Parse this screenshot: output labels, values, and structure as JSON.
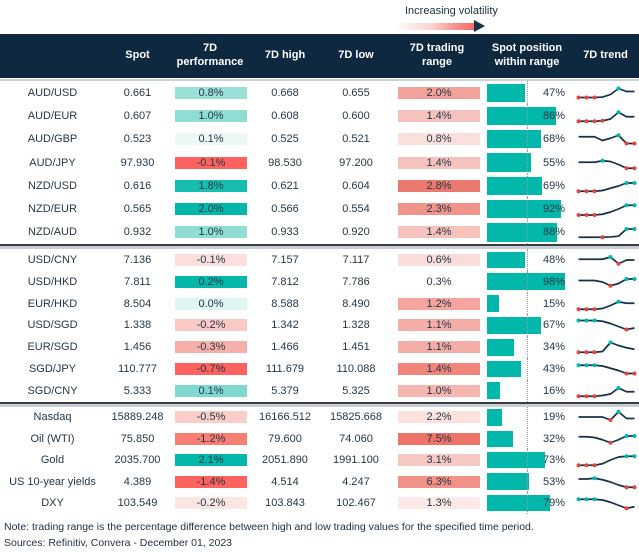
{
  "chart_data": {
    "type": "table",
    "annotation": "Increasing volatility",
    "columns": [
      "Spot",
      "7D performance",
      "7D high",
      "7D low",
      "7D trading range",
      "Spot position within range",
      "7D trend"
    ],
    "colors": {
      "header_navy": "#0E2840",
      "teal": "#01B8AA",
      "red": "#FD625E",
      "spark_line": "#14304A",
      "marker_red": "#E8443C",
      "marker_teal": "#01B8AA",
      "bar_fill": "#01B8AA"
    },
    "groups": [
      {
        "rows": [
          {
            "label": "AUD/USD",
            "spot": "0.661",
            "perf": "0.8%",
            "perf_bg": "#9BE0D7",
            "high": "0.668",
            "low": "0.655",
            "range": "2.0%",
            "range_bg": "#F2A29B",
            "pos": 47,
            "spark": {
              "y": [
                2,
                2,
                2,
                2.3,
                4,
                8,
                6,
                6
              ],
              "m": [
                [
                  0,
                  "r"
                ],
                [
                  1,
                  "r"
                ],
                [
                  2,
                  "r"
                ],
                [
                  5,
                  "t"
                ]
              ]
            }
          },
          {
            "label": "AUD/EUR",
            "spot": "0.607",
            "perf": "1.0%",
            "perf_bg": "#8FDED4",
            "high": "0.608",
            "low": "0.600",
            "range": "1.4%",
            "range_bg": "#F6C2BD",
            "pos": 86,
            "spark": {
              "y": [
                1.5,
                1.5,
                1.5,
                1.8,
                3,
                7.5,
                4.5,
                4.5
              ],
              "m": [
                [
                  0,
                  "r"
                ],
                [
                  1,
                  "r"
                ],
                [
                  2,
                  "r"
                ],
                [
                  3,
                  "r"
                ],
                [
                  5,
                  "t"
                ]
              ]
            }
          },
          {
            "label": "AUD/GBP",
            "spot": "0.523",
            "perf": "0.1%",
            "perf_bg": "#EBF9F6",
            "high": "0.525",
            "low": "0.521",
            "range": "0.8%",
            "range_bg": "#FBDFDC",
            "pos": 68,
            "spark": {
              "y": [
                6.5,
                6.5,
                6.5,
                4,
                5.5,
                7.5,
                2,
                2
              ],
              "m": [
                [
                  5,
                  "t"
                ],
                [
                  6,
                  "r"
                ],
                [
                  7,
                  "r"
                ]
              ]
            }
          },
          {
            "label": "AUD/JPY",
            "spot": "97.930",
            "perf": "-0.1%",
            "perf_bg": "#FD625E",
            "high": "98.530",
            "low": "97.200",
            "range": "1.4%",
            "range_bg": "#F6C2BD",
            "pos": 55,
            "spark": {
              "y": [
                5.5,
                5.5,
                5.5,
                6.5,
                6,
                4,
                1.5,
                1.5
              ],
              "m": [
                [
                  3,
                  "t"
                ],
                [
                  6,
                  "r"
                ],
                [
                  7,
                  "r"
                ]
              ]
            }
          },
          {
            "label": "NZD/USD",
            "spot": "0.616",
            "perf": "1.8%",
            "perf_bg": "#17BDAF",
            "high": "0.621",
            "low": "0.604",
            "range": "2.8%",
            "range_bg": "#EB7A6E",
            "pos": 69,
            "spark": {
              "y": [
                1.5,
                1.5,
                1.5,
                2,
                3.5,
                5,
                7,
                7
              ],
              "m": [
                [
                  0,
                  "r"
                ],
                [
                  1,
                  "r"
                ],
                [
                  2,
                  "r"
                ],
                [
                  6,
                  "t"
                ],
                [
                  7,
                  "t"
                ]
              ]
            }
          },
          {
            "label": "NZD/EUR",
            "spot": "0.565",
            "perf": "2.0%",
            "perf_bg": "#01B8AA",
            "high": "0.566",
            "low": "0.554",
            "range": "2.3%",
            "range_bg": "#EF948A",
            "pos": 92,
            "spark": {
              "y": [
                1,
                1,
                1,
                1.5,
                3,
                5,
                7.5,
                7.5
              ],
              "m": [
                [
                  0,
                  "r"
                ],
                [
                  1,
                  "r"
                ],
                [
                  2,
                  "r"
                ],
                [
                  6,
                  "t"
                ],
                [
                  7,
                  "t"
                ]
              ]
            }
          },
          {
            "label": "NZD/AUD",
            "spot": "0.932",
            "perf": "1.0%",
            "perf_bg": "#8FDED4",
            "high": "0.933",
            "low": "0.920",
            "range": "1.4%",
            "range_bg": "#F6C2BD",
            "pos": 88,
            "spark": {
              "y": [
                1.5,
                1.5,
                1.5,
                1.5,
                1.7,
                2.2,
                7,
                7
              ],
              "m": [
                [
                  3,
                  "r"
                ],
                [
                  6,
                  "t"
                ],
                [
                  7,
                  "t"
                ]
              ]
            }
          }
        ]
      },
      {
        "rows": [
          {
            "label": "USD/CNY",
            "spot": "7.136",
            "perf": "-0.1%",
            "perf_bg": "#FBE0DE",
            "high": "7.157",
            "low": "7.117",
            "range": "0.6%",
            "range_bg": "#FADDDA",
            "pos": 48,
            "spark": {
              "y": [
                5.5,
                5.5,
                5.5,
                5.5,
                7,
                2.5,
                5,
                5
              ],
              "m": [
                [
                  4,
                  "t"
                ],
                [
                  5,
                  "r"
                ]
              ]
            }
          },
          {
            "label": "USD/HKD",
            "spot": "7.811",
            "perf": "0.2%",
            "perf_bg": "#01B8AA",
            "high": "7.812",
            "low": "7.786",
            "range": "0.3%",
            "range_bg": "#FFFFFF",
            "pos": 98,
            "spark": {
              "y": [
                6,
                6,
                6,
                5,
                2.5,
                4,
                7,
                7
              ],
              "m": [
                [
                  4,
                  "r"
                ],
                [
                  6,
                  "t"
                ],
                [
                  7,
                  "t"
                ]
              ]
            }
          },
          {
            "label": "EUR/HKD",
            "spot": "8.504",
            "perf": "0.0%",
            "perf_bg": "#E0F6F2",
            "high": "8.588",
            "low": "8.490",
            "range": "1.2%",
            "range_bg": "#F3A59E",
            "pos": 15,
            "spark": {
              "y": [
                1.5,
                1.5,
                1.5,
                2,
                4,
                6.5,
                5.5,
                5.5
              ],
              "m": [
                [
                  0,
                  "r"
                ],
                [
                  1,
                  "r"
                ],
                [
                  2,
                  "r"
                ],
                [
                  5,
                  "t"
                ]
              ]
            }
          },
          {
            "label": "USD/SGD",
            "spot": "1.338",
            "perf": "-0.2%",
            "perf_bg": "#F9C9C5",
            "high": "1.342",
            "low": "1.328",
            "range": "1.1%",
            "range_bg": "#F4AEA7",
            "pos": 67,
            "spark": {
              "y": [
                8,
                8,
                8,
                7.5,
                6,
                4,
                2,
                3
              ],
              "m": [
                [
                  0,
                  "t"
                ],
                [
                  1,
                  "t"
                ],
                [
                  2,
                  "t"
                ],
                [
                  6,
                  "r"
                ]
              ]
            }
          },
          {
            "label": "EUR/SGD",
            "spot": "1.456",
            "perf": "-0.3%",
            "perf_bg": "#F7B0A9",
            "high": "1.466",
            "low": "1.451",
            "range": "1.1%",
            "range_bg": "#F4AEA7",
            "pos": 34,
            "spark": {
              "y": [
                1.5,
                1.5,
                1.5,
                2,
                8,
                6,
                4.5,
                3.5
              ],
              "m": [
                [
                  0,
                  "r"
                ],
                [
                  1,
                  "r"
                ],
                [
                  2,
                  "r"
                ],
                [
                  4,
                  "t"
                ]
              ]
            }
          },
          {
            "label": "SGD/JPY",
            "spot": "110.777",
            "perf": "-0.7%",
            "perf_bg": "#FD625E",
            "high": "111.679",
            "low": "110.088",
            "range": "1.4%",
            "range_bg": "#F0867B",
            "pos": 43,
            "spark": {
              "y": [
                7.5,
                7.5,
                7.5,
                7,
                5.5,
                4,
                2,
                2
              ],
              "m": [
                [
                  0,
                  "t"
                ],
                [
                  1,
                  "t"
                ],
                [
                  2,
                  "t"
                ],
                [
                  6,
                  "r"
                ],
                [
                  7,
                  "r"
                ]
              ]
            }
          },
          {
            "label": "SGD/CNY",
            "spot": "5.333",
            "perf": "0.1%",
            "perf_bg": "#7FD9CE",
            "high": "5.379",
            "low": "5.325",
            "range": "1.0%",
            "range_bg": "#F5B6AF",
            "pos": 16,
            "spark": {
              "y": [
                1.5,
                1.5,
                1.5,
                2,
                3,
                7,
                4.5,
                4.5
              ],
              "m": [
                [
                  0,
                  "r"
                ],
                [
                  1,
                  "r"
                ],
                [
                  2,
                  "r"
                ],
                [
                  5,
                  "t"
                ]
              ]
            }
          }
        ]
      },
      {
        "rows": [
          {
            "label": "Nasdaq",
            "spot": "15889.248",
            "perf": "-0.5%",
            "perf_bg": "#FACDC9",
            "high": "16166.512",
            "low": "15825.668",
            "range": "2.2%",
            "range_bg": "#FBE2DF",
            "pos": 19,
            "spark": {
              "y": [
                5,
                5,
                5,
                5,
                3,
                8.5,
                4,
                4
              ],
              "m": [
                [
                  4,
                  "r"
                ],
                [
                  5,
                  "t"
                ]
              ]
            }
          },
          {
            "label": "Oil (WTI)",
            "spot": "75.850",
            "perf": "-1.2%",
            "perf_bg": "#F87E74",
            "high": "79.600",
            "low": "74.060",
            "range": "7.5%",
            "range_bg": "#ED7267",
            "pos": 32,
            "spark": {
              "y": [
                6.5,
                6.5,
                6,
                4.5,
                2.5,
                4.5,
                7,
                7
              ],
              "m": [
                [
                  4,
                  "r"
                ],
                [
                  6,
                  "t"
                ],
                [
                  7,
                  "t"
                ]
              ]
            }
          },
          {
            "label": "Gold",
            "spot": "2035.700",
            "perf": "2.1%",
            "perf_bg": "#01B8AA",
            "high": "2051.890",
            "low": "1991.100",
            "range": "3.1%",
            "range_bg": "#F8C8C3",
            "pos": 73,
            "spark": {
              "y": [
                1.5,
                1.5,
                1.5,
                2.5,
                5,
                7,
                7.5,
                7.5
              ],
              "m": [
                [
                  0,
                  "r"
                ],
                [
                  1,
                  "r"
                ],
                [
                  2,
                  "r"
                ],
                [
                  6,
                  "t"
                ],
                [
                  7,
                  "t"
                ]
              ]
            }
          },
          {
            "label": "US 10-year yields",
            "spot": "4.389",
            "perf": "-1.4%",
            "perf_bg": "#FD625E",
            "high": "4.514",
            "low": "4.247",
            "range": "6.3%",
            "range_bg": "#F19187",
            "pos": 53,
            "spark": {
              "y": [
                7,
                7,
                7.5,
                6.5,
                5,
                3,
                1.5,
                1.5
              ],
              "m": [
                [
                  2,
                  "t"
                ],
                [
                  6,
                  "r"
                ],
                [
                  7,
                  "r"
                ]
              ]
            }
          },
          {
            "label": "DXY",
            "spot": "103.549",
            "perf": "-0.2%",
            "perf_bg": "#FCE6E4",
            "high": "103.843",
            "low": "102.467",
            "range": "1.3%",
            "range_bg": "#FCEAE8",
            "pos": 79,
            "spark": {
              "y": [
                7.5,
                7.5,
                7.5,
                7,
                5.5,
                3.5,
                1.5,
                2.5
              ],
              "m": [
                [
                  0,
                  "t"
                ],
                [
                  1,
                  "t"
                ],
                [
                  2,
                  "t"
                ],
                [
                  6,
                  "r"
                ]
              ]
            }
          }
        ]
      }
    ],
    "note": "Note: trading range is the percentage difference between high and low trading values for the specified time period.",
    "sources": "Sources: Refinitiv, Convera - December 01, 2023"
  }
}
